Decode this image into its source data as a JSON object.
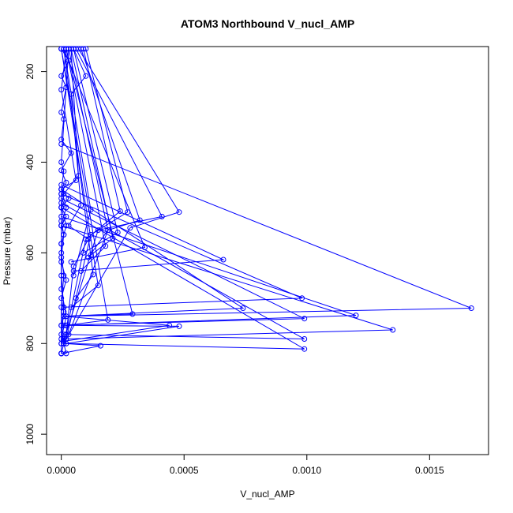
{
  "chart_data": {
    "type": "line",
    "title": "ATOM3 Northbound V_nucl_AMP",
    "xlabel": "V_nucl_AMP",
    "ylabel": "Pressure (mbar)",
    "xlim": [
      -6e-05,
      0.00174
    ],
    "ylim": [
      1045,
      145
    ],
    "y_reversed": true,
    "grid": false,
    "legend": "none",
    "series_color": "#0000ff",
    "x_ticks": [
      {
        "value": 0,
        "label": "0.0000"
      },
      {
        "value": 0.0005,
        "label": "0.0005"
      },
      {
        "value": 0.001,
        "label": "0.0010"
      },
      {
        "value": 0.0015,
        "label": "0.0015"
      }
    ],
    "y_ticks": [
      {
        "value": 200,
        "label": "200"
      },
      {
        "value": 400,
        "label": "400"
      },
      {
        "value": 600,
        "label": "600"
      },
      {
        "value": 800,
        "label": "800"
      },
      {
        "value": 1000,
        "label": "1000"
      }
    ],
    "series": [
      {
        "x": [
          0.0,
          3e-05,
          0.0,
          2e-05,
          0.0,
          1e-05,
          0.0,
          4e-05,
          0.0,
          2e-05,
          0.0,
          0.0,
          1e-05,
          0.0,
          0.0,
          2e-05,
          0.0,
          0.0
        ],
        "y": [
          150,
          176,
          210,
          235,
          290,
          305,
          350,
          380,
          418,
          445,
          470,
          530,
          560,
          610,
          680,
          740,
          790,
          822
        ]
      },
      {
        "x": [
          2e-05,
          0.0,
          6e-05,
          0.0,
          3e-05,
          0.0,
          2e-05,
          0.0,
          1e-05,
          0.0,
          0.0,
          2e-05,
          0.0,
          1e-05,
          0.0,
          1e-05,
          0.0
        ],
        "y": [
          150,
          240,
          440,
          460,
          480,
          500,
          520,
          540,
          560,
          580,
          620,
          660,
          700,
          730,
          760,
          800,
          822
        ]
      },
      {
        "x": [
          3e-05,
          0.0,
          1e-05,
          0.0,
          2e-05,
          0.0,
          0.0,
          1e-05,
          0.0,
          0.0
        ],
        "y": [
          150,
          400,
          420,
          460,
          500,
          540,
          600,
          650,
          720,
          800
        ]
      },
      {
        "x": [
          4e-05,
          7e-05,
          1e-05,
          0.0,
          2e-05,
          0.0,
          0.0,
          1e-05,
          0.0
        ],
        "y": [
          150,
          430,
          470,
          500,
          540,
          580,
          650,
          720,
          800
        ]
      },
      {
        "x": [
          5e-05,
          0.0001,
          4e-05,
          8e-05,
          3e-05,
          0.00011,
          5e-05,
          2e-05
        ],
        "y": [
          150,
          210,
          250,
          495,
          540,
          570,
          630,
          780
        ]
      },
      {
        "x": [
          6e-05,
          0.00041,
          0.00015,
          1e-05
        ],
        "y": [
          150,
          520,
          550,
          795
        ]
      },
      {
        "x": [
          7e-05,
          0.00048,
          0.00028,
          1e-05
        ],
        "y": [
          150,
          510,
          545,
          800
        ]
      },
      {
        "x": [
          8e-05,
          0.00032,
          0.00019,
          3e-05
        ],
        "y": [
          150,
          528,
          550,
          780
        ]
      },
      {
        "x": [
          0.0001,
          0.00027,
          0.00012,
          2e-05
        ],
        "y": [
          150,
          510,
          560,
          790
        ]
      },
      {
        "x": [
          9e-05,
          0.00024,
          0.0001,
          1e-05
        ],
        "y": [
          150,
          508,
          570,
          800
        ]
      },
      {
        "x": [
          5e-05,
          0.00023,
          9e-05
        ],
        "y": [
          150,
          555,
          600
        ]
      },
      {
        "x": [
          4e-05,
          0.00021,
          0.00012
        ],
        "y": [
          150,
          568,
          605
        ]
      },
      {
        "x": [
          3e-05,
          0.00019,
          0.00011
        ],
        "y": [
          150,
          550,
          610
        ]
      },
      {
        "x": [
          2e-05,
          0.00018,
          8e-05
        ],
        "y": [
          150,
          585,
          640
        ]
      },
      {
        "x": [
          1e-05,
          0.00012,
          5e-05
        ],
        "y": [
          150,
          505,
          650
        ]
      },
      {
        "x": [
          1e-05,
          0.00013,
          6e-05
        ],
        "y": [
          150,
          648,
          700
        ]
      },
      {
        "x": [
          0.0,
          0.00015,
          4e-05
        ],
        "y": [
          150,
          672,
          720
        ]
      },
      {
        "x": [
          2e-05,
          0.00029,
          1e-05
        ],
        "y": [
          150,
          735,
          740
        ]
      },
      {
        "x": [
          0.0,
          0.00019,
          2e-05
        ],
        "y": [
          150,
          748,
          760
        ]
      },
      {
        "x": [
          1e-05,
          0.00034,
          4e-05
        ],
        "y": [
          150,
          588,
          620
        ]
      },
      {
        "x": [
          0.0,
          0.00066,
          5e-05
        ],
        "y": [
          450,
          615,
          640
        ]
      },
      {
        "x": [
          0.0,
          0.00074,
          1e-05
        ],
        "y": [
          460,
          722,
          740
        ]
      },
      {
        "x": [
          0.0,
          0.00098,
          1e-05
        ],
        "y": [
          470,
          700,
          720
        ]
      },
      {
        "x": [
          0.0,
          0.00099,
          0.0
        ],
        "y": [
          480,
          745,
          760
        ]
      },
      {
        "x": [
          0.0,
          0.00099,
          1e-05
        ],
        "y": [
          490,
          790,
          780
        ]
      },
      {
        "x": [
          0.0,
          0.00099,
          2e-05
        ],
        "y": [
          500,
          812,
          800
        ]
      },
      {
        "x": [
          0.0,
          0.0012,
          2e-05
        ],
        "y": [
          520,
          738,
          760
        ]
      },
      {
        "x": [
          0.0,
          0.00135,
          1e-05
        ],
        "y": [
          540,
          770,
          790
        ]
      },
      {
        "x": [
          0.0,
          0.00167,
          2e-05
        ],
        "y": [
          360,
          722,
          740
        ]
      },
      {
        "x": [
          1e-05,
          0.00044,
          1e-05
        ],
        "y": [
          740,
          760,
          795
        ]
      },
      {
        "x": [
          1e-05,
          0.00048,
          2e-05
        ],
        "y": [
          760,
          762,
          800
        ]
      },
      {
        "x": [
          1e-05,
          0.00016,
          0.0
        ],
        "y": [
          800,
          805,
          822
        ]
      },
      {
        "x": [
          0.0,
          1e-05,
          2e-05,
          0.0
        ],
        "y": [
          780,
          800,
          822,
          822
        ]
      }
    ]
  }
}
